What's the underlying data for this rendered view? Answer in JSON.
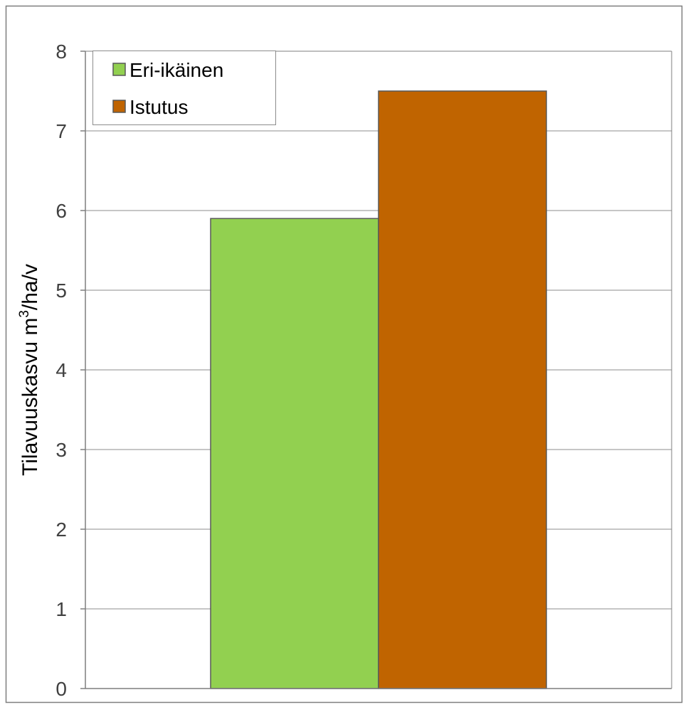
{
  "chart_data": {
    "type": "bar",
    "title": "",
    "xlabel": "",
    "ylabel": "Tilavuuskasvu m",
    "ylabel_superscript": "3",
    "ylabel_suffix": "/ha/v",
    "ylim": [
      0,
      8
    ],
    "yticks": [
      0,
      1,
      2,
      3,
      4,
      5,
      6,
      7,
      8
    ],
    "grid": true,
    "legend_position": "top-left",
    "series": [
      {
        "name": "Eri-ikäinen",
        "value": 5.9,
        "color": "#92d050"
      },
      {
        "name": "Istutus",
        "value": 7.5,
        "color": "#c06400"
      }
    ]
  }
}
